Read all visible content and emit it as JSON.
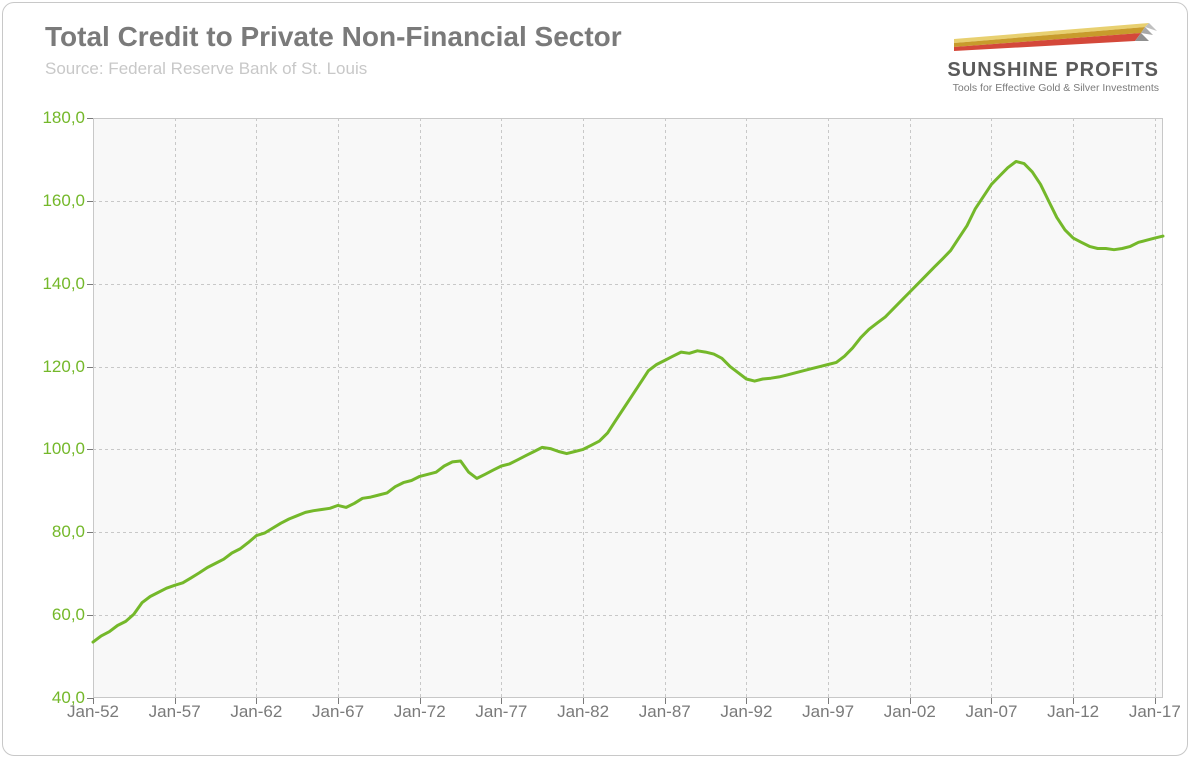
{
  "chart": {
    "type": "line",
    "title": "Total Credit to Private Non-Financial Sector",
    "subtitle": "Source: Federal Reserve Bank of St. Louis",
    "title_fontsize": 28,
    "title_color": "#7a7a7a",
    "subtitle_fontsize": 17,
    "subtitle_color": "#c8c8c8",
    "background_color": "#ffffff",
    "plot_bg_color": "#f8f8f8",
    "border_color": "#c8c8c8",
    "border_radius": 12,
    "grid_color": "#c8c8c8",
    "grid_style": "dashed",
    "line_color": "#74b82a",
    "line_width": 3,
    "ylim": [
      40,
      180
    ],
    "ytick_step": 20,
    "yticks": [
      "40,0",
      "60,0",
      "80,0",
      "100,0",
      "120,0",
      "140,0",
      "160,0",
      "180,0"
    ],
    "ytick_color": "#74b82a",
    "xticks": [
      "Jan-52",
      "Jan-57",
      "Jan-62",
      "Jan-67",
      "Jan-72",
      "Jan-77",
      "Jan-82",
      "Jan-87",
      "Jan-92",
      "Jan-97",
      "Jan-02",
      "Jan-07",
      "Jan-12",
      "Jan-17"
    ],
    "xtick_years": [
      1952,
      1957,
      1962,
      1967,
      1972,
      1977,
      1982,
      1987,
      1992,
      1997,
      2002,
      2007,
      2012,
      2017
    ],
    "xtick_color": "#7a7a7a",
    "label_fontsize": 17,
    "x_range": [
      1952,
      2017.5
    ],
    "data": [
      [
        1952.0,
        53.5
      ],
      [
        1952.5,
        55.0
      ],
      [
        1953.0,
        56.0
      ],
      [
        1953.5,
        57.5
      ],
      [
        1954.0,
        58.5
      ],
      [
        1954.5,
        60.2
      ],
      [
        1955.0,
        63.0
      ],
      [
        1955.5,
        64.5
      ],
      [
        1956.0,
        65.5
      ],
      [
        1956.5,
        66.5
      ],
      [
        1957.0,
        67.2
      ],
      [
        1957.5,
        67.8
      ],
      [
        1958.0,
        69.0
      ],
      [
        1958.5,
        70.2
      ],
      [
        1959.0,
        71.5
      ],
      [
        1959.5,
        72.5
      ],
      [
        1960.0,
        73.5
      ],
      [
        1960.5,
        75.0
      ],
      [
        1961.0,
        76.0
      ],
      [
        1961.5,
        77.5
      ],
      [
        1962.0,
        79.2
      ],
      [
        1962.5,
        79.8
      ],
      [
        1963.0,
        81.0
      ],
      [
        1963.5,
        82.2
      ],
      [
        1964.0,
        83.2
      ],
      [
        1964.5,
        84.0
      ],
      [
        1965.0,
        84.8
      ],
      [
        1965.5,
        85.2
      ],
      [
        1966.0,
        85.5
      ],
      [
        1966.5,
        85.8
      ],
      [
        1967.0,
        86.5
      ],
      [
        1967.5,
        86.0
      ],
      [
        1968.0,
        87.0
      ],
      [
        1968.5,
        88.2
      ],
      [
        1969.0,
        88.5
      ],
      [
        1969.5,
        89.0
      ],
      [
        1970.0,
        89.5
      ],
      [
        1970.5,
        91.0
      ],
      [
        1971.0,
        92.0
      ],
      [
        1971.5,
        92.5
      ],
      [
        1972.0,
        93.5
      ],
      [
        1972.5,
        94.0
      ],
      [
        1973.0,
        94.5
      ],
      [
        1973.5,
        96.0
      ],
      [
        1974.0,
        97.0
      ],
      [
        1974.5,
        97.2
      ],
      [
        1975.0,
        94.5
      ],
      [
        1975.5,
        93.0
      ],
      [
        1976.0,
        94.0
      ],
      [
        1976.5,
        95.0
      ],
      [
        1977.0,
        96.0
      ],
      [
        1977.5,
        96.5
      ],
      [
        1978.0,
        97.5
      ],
      [
        1978.5,
        98.5
      ],
      [
        1979.0,
        99.5
      ],
      [
        1979.5,
        100.5
      ],
      [
        1980.0,
        100.2
      ],
      [
        1980.5,
        99.5
      ],
      [
        1981.0,
        99.0
      ],
      [
        1981.5,
        99.5
      ],
      [
        1982.0,
        100.0
      ],
      [
        1982.5,
        101.0
      ],
      [
        1983.0,
        102.0
      ],
      [
        1983.5,
        104.0
      ],
      [
        1984.0,
        107.0
      ],
      [
        1984.5,
        110.0
      ],
      [
        1985.0,
        113.0
      ],
      [
        1985.5,
        116.0
      ],
      [
        1986.0,
        119.0
      ],
      [
        1986.5,
        120.5
      ],
      [
        1987.0,
        121.5
      ],
      [
        1987.5,
        122.5
      ],
      [
        1988.0,
        123.5
      ],
      [
        1988.5,
        123.2
      ],
      [
        1989.0,
        123.8
      ],
      [
        1989.5,
        123.5
      ],
      [
        1990.0,
        123.0
      ],
      [
        1990.5,
        122.0
      ],
      [
        1991.0,
        120.0
      ],
      [
        1991.5,
        118.5
      ],
      [
        1992.0,
        117.0
      ],
      [
        1992.5,
        116.5
      ],
      [
        1993.0,
        117.0
      ],
      [
        1993.5,
        117.2
      ],
      [
        1994.0,
        117.5
      ],
      [
        1994.5,
        118.0
      ],
      [
        1995.0,
        118.5
      ],
      [
        1995.5,
        119.0
      ],
      [
        1996.0,
        119.5
      ],
      [
        1996.5,
        120.0
      ],
      [
        1997.0,
        120.5
      ],
      [
        1997.5,
        121.0
      ],
      [
        1998.0,
        122.5
      ],
      [
        1998.5,
        124.5
      ],
      [
        1999.0,
        127.0
      ],
      [
        1999.5,
        129.0
      ],
      [
        2000.0,
        130.5
      ],
      [
        2000.5,
        132.0
      ],
      [
        2001.0,
        134.0
      ],
      [
        2001.5,
        136.0
      ],
      [
        2002.0,
        138.0
      ],
      [
        2002.5,
        140.0
      ],
      [
        2003.0,
        142.0
      ],
      [
        2003.5,
        144.0
      ],
      [
        2004.0,
        146.0
      ],
      [
        2004.5,
        148.0
      ],
      [
        2005.0,
        151.0
      ],
      [
        2005.5,
        154.0
      ],
      [
        2006.0,
        158.0
      ],
      [
        2006.5,
        161.0
      ],
      [
        2007.0,
        164.0
      ],
      [
        2007.5,
        166.0
      ],
      [
        2008.0,
        168.0
      ],
      [
        2008.5,
        169.5
      ],
      [
        2009.0,
        169.0
      ],
      [
        2009.5,
        167.0
      ],
      [
        2010.0,
        164.0
      ],
      [
        2010.5,
        160.0
      ],
      [
        2011.0,
        156.0
      ],
      [
        2011.5,
        153.0
      ],
      [
        2012.0,
        151.0
      ],
      [
        2012.5,
        150.0
      ],
      [
        2013.0,
        149.0
      ],
      [
        2013.5,
        148.5
      ],
      [
        2014.0,
        148.5
      ],
      [
        2014.5,
        148.2
      ],
      [
        2015.0,
        148.5
      ],
      [
        2015.5,
        149.0
      ],
      [
        2016.0,
        150.0
      ],
      [
        2016.5,
        150.5
      ],
      [
        2017.0,
        151.0
      ],
      [
        2017.5,
        151.5
      ]
    ]
  },
  "logo": {
    "brand": "SUNSHINE PROFITS",
    "tagline": "Tools for Effective Gold & Silver Investments",
    "stripe_colors": [
      "#c89b2c",
      "#d4483a",
      "#e8d070"
    ]
  }
}
